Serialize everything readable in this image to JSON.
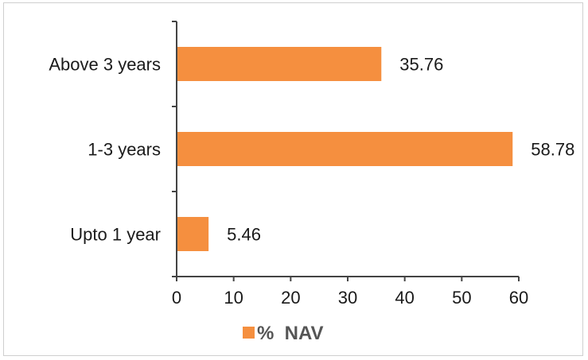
{
  "chart_data": {
    "type": "bar",
    "orientation": "horizontal",
    "categories": [
      "Above 3 years",
      "1-3 years",
      "Upto 1 year"
    ],
    "series": [
      {
        "name": "%  NAV",
        "values": [
          35.76,
          58.78,
          5.46
        ]
      }
    ],
    "data_labels": [
      "35.76",
      "58.78",
      "5.46"
    ],
    "xlim": [
      0,
      60
    ],
    "xticks": [
      0,
      10,
      20,
      30,
      40,
      50,
      60
    ],
    "xtick_labels": [
      "0",
      "10",
      "20",
      "30",
      "40",
      "50",
      "60"
    ],
    "grid": false,
    "legend": {
      "position": "bottom",
      "entries": [
        "%  NAV"
      ]
    },
    "colors": {
      "bar": "#f58f3f",
      "axis": "#444444"
    }
  }
}
